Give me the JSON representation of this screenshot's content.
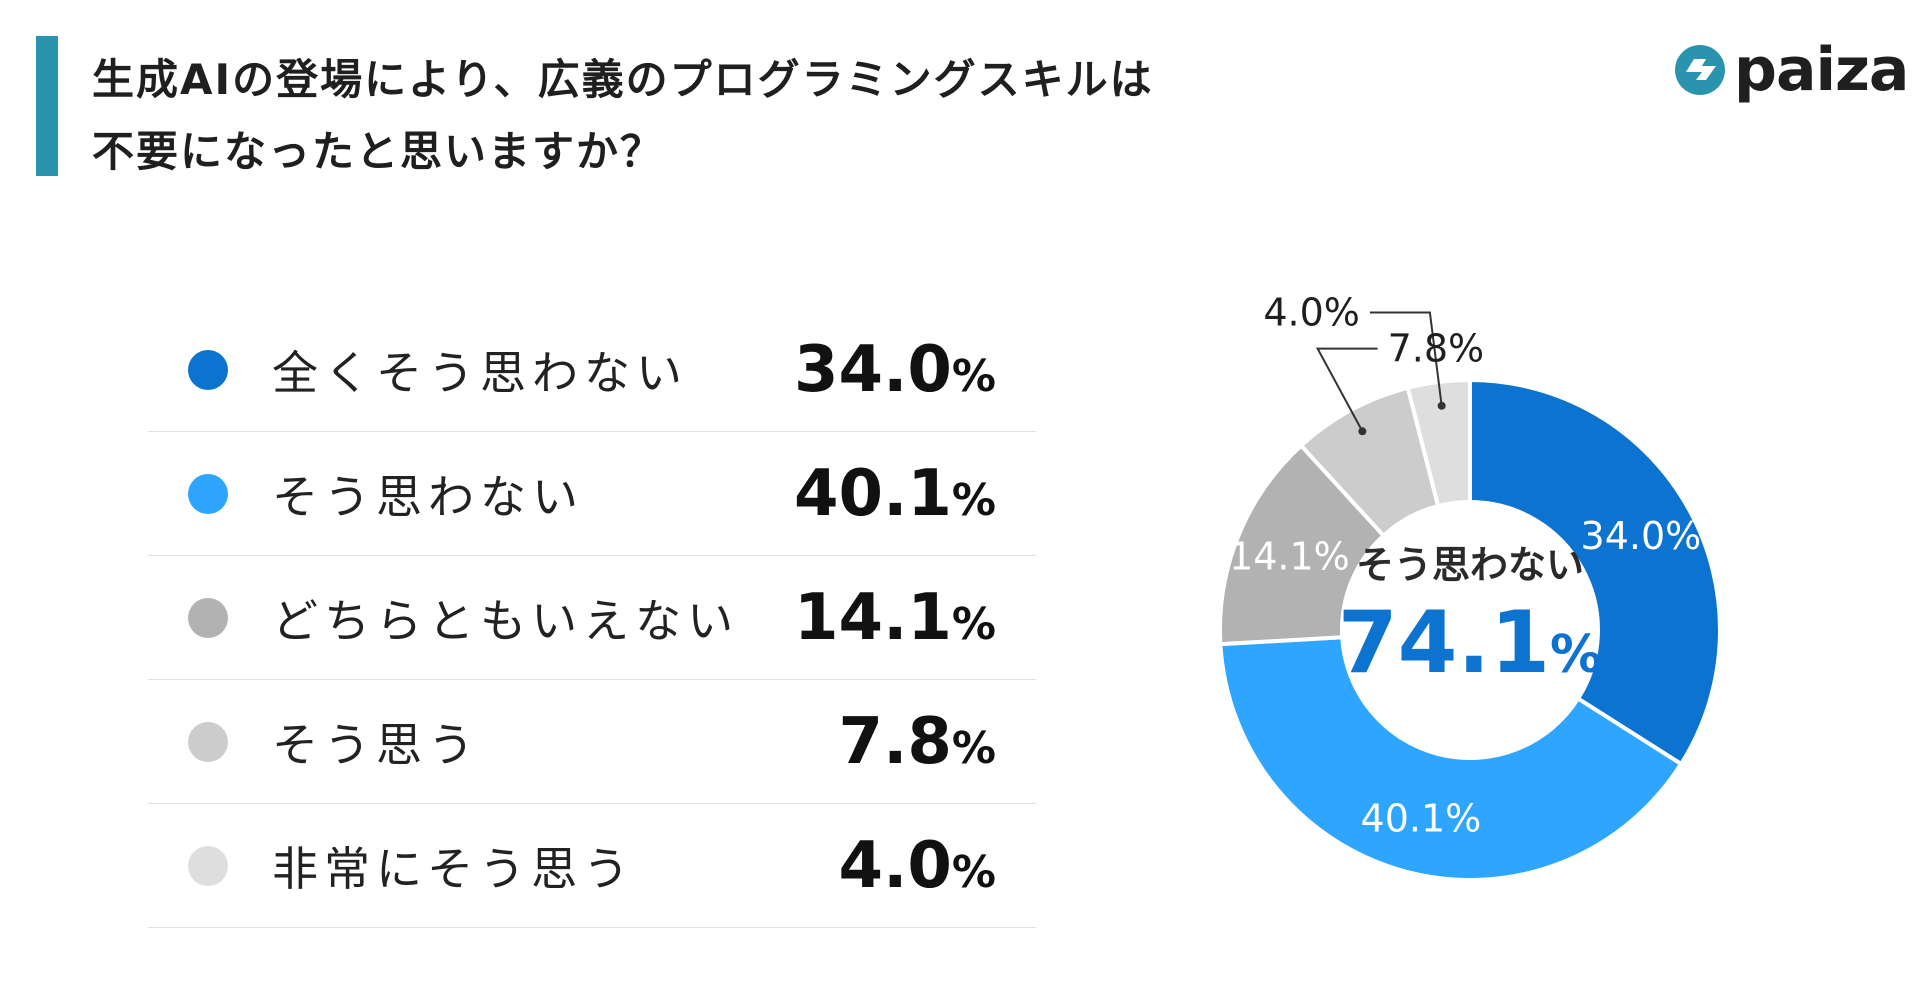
{
  "title": {
    "line1": "生成AIの登場により、広義のプログラミングスキルは",
    "line2": "不要になったと思いますか？"
  },
  "logo": {
    "text": "paiza"
  },
  "legend": {
    "items": [
      {
        "label": "全くそう思わない",
        "value": "34.0",
        "unit": "%",
        "color": "#0d73d0"
      },
      {
        "label": "そう思わない",
        "value": "40.1",
        "unit": "%",
        "color": "#2ea5ff"
      },
      {
        "label": "どちらともいえない",
        "value": "14.1",
        "unit": "%",
        "color": "#b2b2b2"
      },
      {
        "label": "そう思う",
        "value": "7.8",
        "unit": "%",
        "color": "#cccccc"
      },
      {
        "label": "非常にそう思う",
        "value": "4.0",
        "unit": "%",
        "color": "#dedede"
      }
    ]
  },
  "center": {
    "label": "そう思わない",
    "value": "74.1",
    "unit": "%",
    "color": "#0d73d0"
  },
  "chart_data": {
    "type": "pie",
    "donut": true,
    "categories": [
      "全くそう思わない",
      "そう思わない",
      "どちらともいえない",
      "そう思う",
      "非常にそう思う"
    ],
    "values": [
      34.0,
      40.1,
      14.1,
      7.8,
      4.0
    ],
    "colors": [
      "#0d73d0",
      "#2ea5ff",
      "#b2b2b2",
      "#cccccc",
      "#dedede"
    ],
    "labels": [
      "34.0%",
      "40.1%",
      "14.1%",
      "7.8%",
      "4.0%"
    ],
    "label_colors": [
      "#ffffff",
      "#ffffff",
      "#ffffff",
      "#1f1f1f",
      "#1f1f1f"
    ]
  }
}
